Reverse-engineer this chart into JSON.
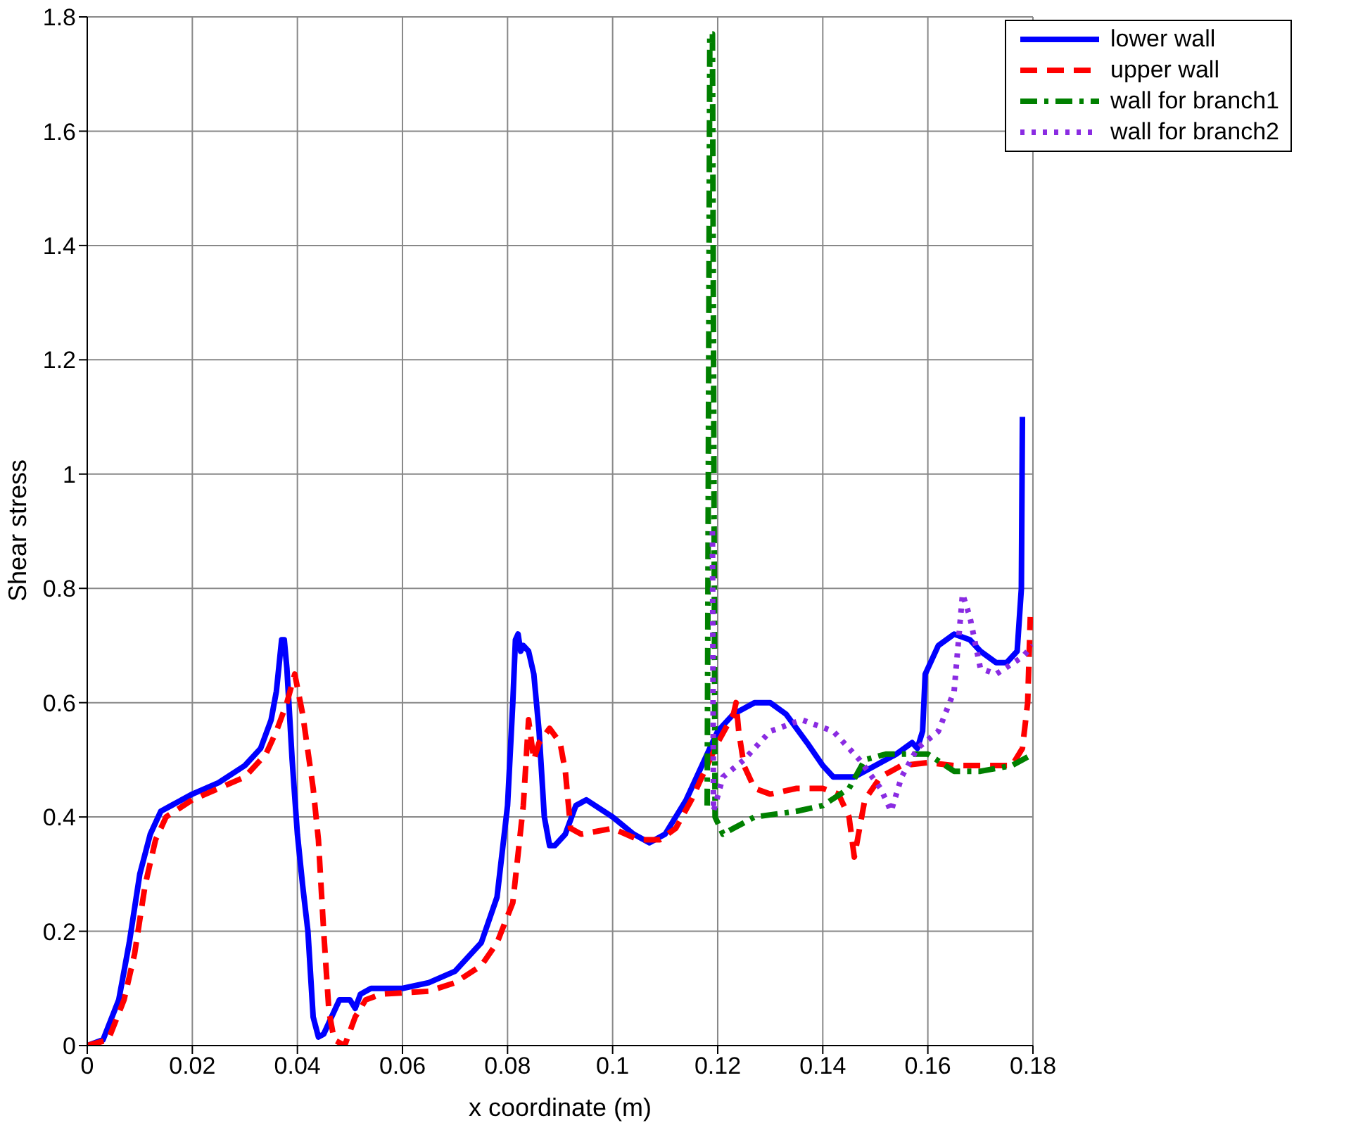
{
  "chart_data": {
    "type": "line",
    "xlabel": "x coordinate (m)",
    "ylabel": "Shear stress",
    "xlim": [
      0,
      0.18
    ],
    "xticks": [
      0,
      0.02,
      0.04,
      0.06,
      0.08,
      0.1,
      0.12,
      0.14,
      0.16,
      0.18
    ],
    "ylim": [
      0,
      1.8
    ],
    "yticks": [
      0,
      0.2,
      0.4,
      0.6,
      0.8,
      1,
      1.2,
      1.4,
      1.6,
      1.8
    ],
    "grid": true,
    "legend": "top right",
    "marker": "none",
    "series": [
      {
        "name": "lower wall",
        "color": "#0000ff",
        "line_style": "solid",
        "x": [
          0,
          0.003,
          0.006,
          0.008,
          0.01,
          0.012,
          0.014,
          0.016,
          0.02,
          0.025,
          0.03,
          0.033,
          0.035,
          0.036,
          0.037,
          0.0375,
          0.038,
          0.039,
          0.04,
          0.041,
          0.042,
          0.043,
          0.044,
          0.045,
          0.047,
          0.048,
          0.05,
          0.051,
          0.052,
          0.054,
          0.06,
          0.065,
          0.07,
          0.075,
          0.078,
          0.08,
          0.081,
          0.0815,
          0.082,
          0.0825,
          0.083,
          0.084,
          0.085,
          0.086,
          0.087,
          0.088,
          0.089,
          0.091,
          0.093,
          0.095,
          0.1,
          0.104,
          0.107,
          0.11,
          0.114,
          0.118,
          0.12,
          0.123,
          0.127,
          0.13,
          0.133,
          0.137,
          0.14,
          0.142,
          0.146,
          0.15,
          0.154,
          0.157,
          0.158,
          0.159,
          0.1595,
          0.162,
          0.165,
          0.168,
          0.17,
          0.173,
          0.175,
          0.177,
          0.1778,
          0.178
        ],
        "values": [
          0,
          0.01,
          0.08,
          0.18,
          0.3,
          0.37,
          0.41,
          0.42,
          0.44,
          0.46,
          0.49,
          0.52,
          0.57,
          0.62,
          0.71,
          0.71,
          0.66,
          0.5,
          0.37,
          0.28,
          0.2,
          0.05,
          0.015,
          0.02,
          0.06,
          0.08,
          0.08,
          0.065,
          0.09,
          0.1,
          0.1,
          0.11,
          0.13,
          0.18,
          0.26,
          0.42,
          0.6,
          0.71,
          0.72,
          0.69,
          0.7,
          0.69,
          0.65,
          0.55,
          0.4,
          0.35,
          0.35,
          0.37,
          0.42,
          0.43,
          0.4,
          0.37,
          0.355,
          0.37,
          0.43,
          0.51,
          0.55,
          0.58,
          0.6,
          0.6,
          0.58,
          0.53,
          0.49,
          0.47,
          0.47,
          0.49,
          0.51,
          0.53,
          0.52,
          0.55,
          0.65,
          0.7,
          0.72,
          0.71,
          0.69,
          0.67,
          0.67,
          0.69,
          0.8,
          1.1
        ]
      },
      {
        "name": "upper wall",
        "color": "#ff0000",
        "line_style": "dashed",
        "x": [
          0,
          0.004,
          0.007,
          0.009,
          0.011,
          0.013,
          0.015,
          0.02,
          0.025,
          0.03,
          0.034,
          0.036,
          0.038,
          0.0395,
          0.041,
          0.043,
          0.044,
          0.045,
          0.046,
          0.047,
          0.049,
          0.051,
          0.053,
          0.056,
          0.065,
          0.07,
          0.075,
          0.078,
          0.081,
          0.083,
          0.084,
          0.085,
          0.086,
          0.088,
          0.09,
          0.091,
          0.092,
          0.094,
          0.1,
          0.105,
          0.109,
          0.112,
          0.115,
          0.118,
          0.12,
          0.123,
          0.1235,
          0.124,
          0.125,
          0.127,
          0.13,
          0.135,
          0.14,
          0.143,
          0.145,
          0.146,
          0.147,
          0.148,
          0.151,
          0.155,
          0.16,
          0.165,
          0.17,
          0.176,
          0.178,
          0.179,
          0.1795
        ],
        "values": [
          0,
          0.01,
          0.08,
          0.16,
          0.28,
          0.36,
          0.4,
          0.43,
          0.45,
          0.47,
          0.51,
          0.55,
          0.6,
          0.65,
          0.58,
          0.45,
          0.36,
          0.2,
          0.06,
          0.01,
          0,
          0.05,
          0.08,
          0.09,
          0.095,
          0.11,
          0.14,
          0.18,
          0.25,
          0.42,
          0.57,
          0.5,
          0.53,
          0.555,
          0.53,
          0.48,
          0.38,
          0.37,
          0.38,
          0.36,
          0.36,
          0.38,
          0.43,
          0.49,
          0.53,
          0.58,
          0.6,
          0.55,
          0.49,
          0.45,
          0.44,
          0.45,
          0.45,
          0.44,
          0.4,
          0.33,
          0.38,
          0.43,
          0.47,
          0.49,
          0.495,
          0.49,
          0.49,
          0.49,
          0.52,
          0.6,
          0.75
        ]
      },
      {
        "name": "wall for branch1",
        "color": "#008000",
        "line_style": "dashdot",
        "x": [
          0.118,
          0.1185,
          0.119,
          0.1195,
          0.121,
          0.123,
          0.127,
          0.135,
          0.14,
          0.145,
          0.148,
          0.152,
          0.16,
          0.165,
          0.17,
          0.176,
          0.18
        ],
        "values": [
          0.42,
          1.77,
          1.77,
          0.4,
          0.37,
          0.38,
          0.4,
          0.41,
          0.42,
          0.45,
          0.5,
          0.51,
          0.51,
          0.48,
          0.48,
          0.49,
          0.51
        ]
      },
      {
        "name": "wall for branch2",
        "color": "#8a2be2",
        "line_style": "dotted",
        "x": [
          0.119,
          0.1192,
          0.121,
          0.125,
          0.13,
          0.136,
          0.142,
          0.147,
          0.151,
          0.153,
          0.155,
          0.158,
          0.162,
          0.165,
          0.1666,
          0.168,
          0.17,
          0.173,
          0.178,
          0.18
        ],
        "values": [
          0.9,
          0.41,
          0.47,
          0.5,
          0.55,
          0.57,
          0.55,
          0.5,
          0.45,
          0.41,
          0.47,
          0.52,
          0.55,
          0.62,
          0.79,
          0.75,
          0.66,
          0.65,
          0.68,
          0.7
        ]
      }
    ]
  }
}
